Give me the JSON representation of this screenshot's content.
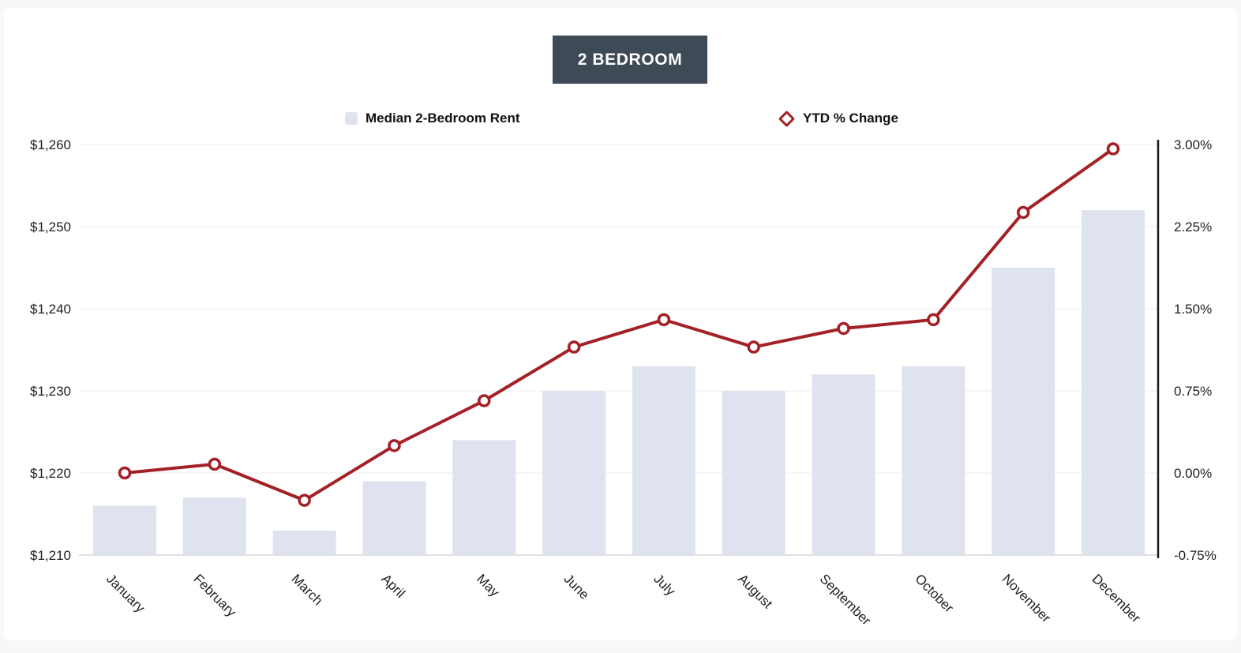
{
  "page": {
    "background_color": "#f7f8fa",
    "card_color": "#ffffff"
  },
  "title_badge": {
    "label": "2 BEDROOM",
    "background_color": "#3e4a55",
    "text_color": "#ffffff"
  },
  "legend": [
    {
      "label": "Median 2-Bedroom Rent",
      "marker": "square-swatch",
      "color": "#dfe3f0"
    },
    {
      "label": "YTD % Change",
      "marker": "diamond-outline",
      "color": "#a32126"
    }
  ],
  "chart_data": {
    "type": "combo-bar-line",
    "title": "2 BEDROOM",
    "categories": [
      "January",
      "February",
      "March",
      "April",
      "May",
      "June",
      "July",
      "August",
      "September",
      "October",
      "November",
      "December"
    ],
    "series": [
      {
        "name": "Median 2-Bedroom Rent",
        "type": "bar",
        "axis": "left",
        "color": "#dfe3f0",
        "values": [
          1216,
          1217,
          1213,
          1219,
          1224,
          1230,
          1233,
          1230,
          1232,
          1233,
          1245,
          1252
        ]
      },
      {
        "name": "YTD % Change",
        "type": "line",
        "axis": "right",
        "color": "#a32126",
        "marker": "circle-ring",
        "values": [
          0.0,
          0.08,
          -0.25,
          0.25,
          0.66,
          1.15,
          1.4,
          1.15,
          1.32,
          1.4,
          2.38,
          2.96
        ]
      }
    ],
    "left_axis": {
      "min": 1210,
      "max": 1260,
      "tick_values": [
        1260,
        1250,
        1240,
        1230,
        1220,
        1210
      ],
      "tick_labels": [
        "$1,260",
        "$1,250",
        "$1,240",
        "$1,230",
        "$1,220",
        "$1,210"
      ]
    },
    "right_axis": {
      "min": -0.75,
      "max": 3.0,
      "tick_values": [
        3.0,
        2.25,
        1.5,
        0.75,
        0.0,
        -0.75
      ],
      "tick_labels": [
        "3.00%",
        "2.25%",
        "1.50%",
        "0.75%",
        "0.00%",
        "-0.75%"
      ]
    },
    "grid": true,
    "legend_position": "top",
    "x_label_rotation_deg": 45
  }
}
